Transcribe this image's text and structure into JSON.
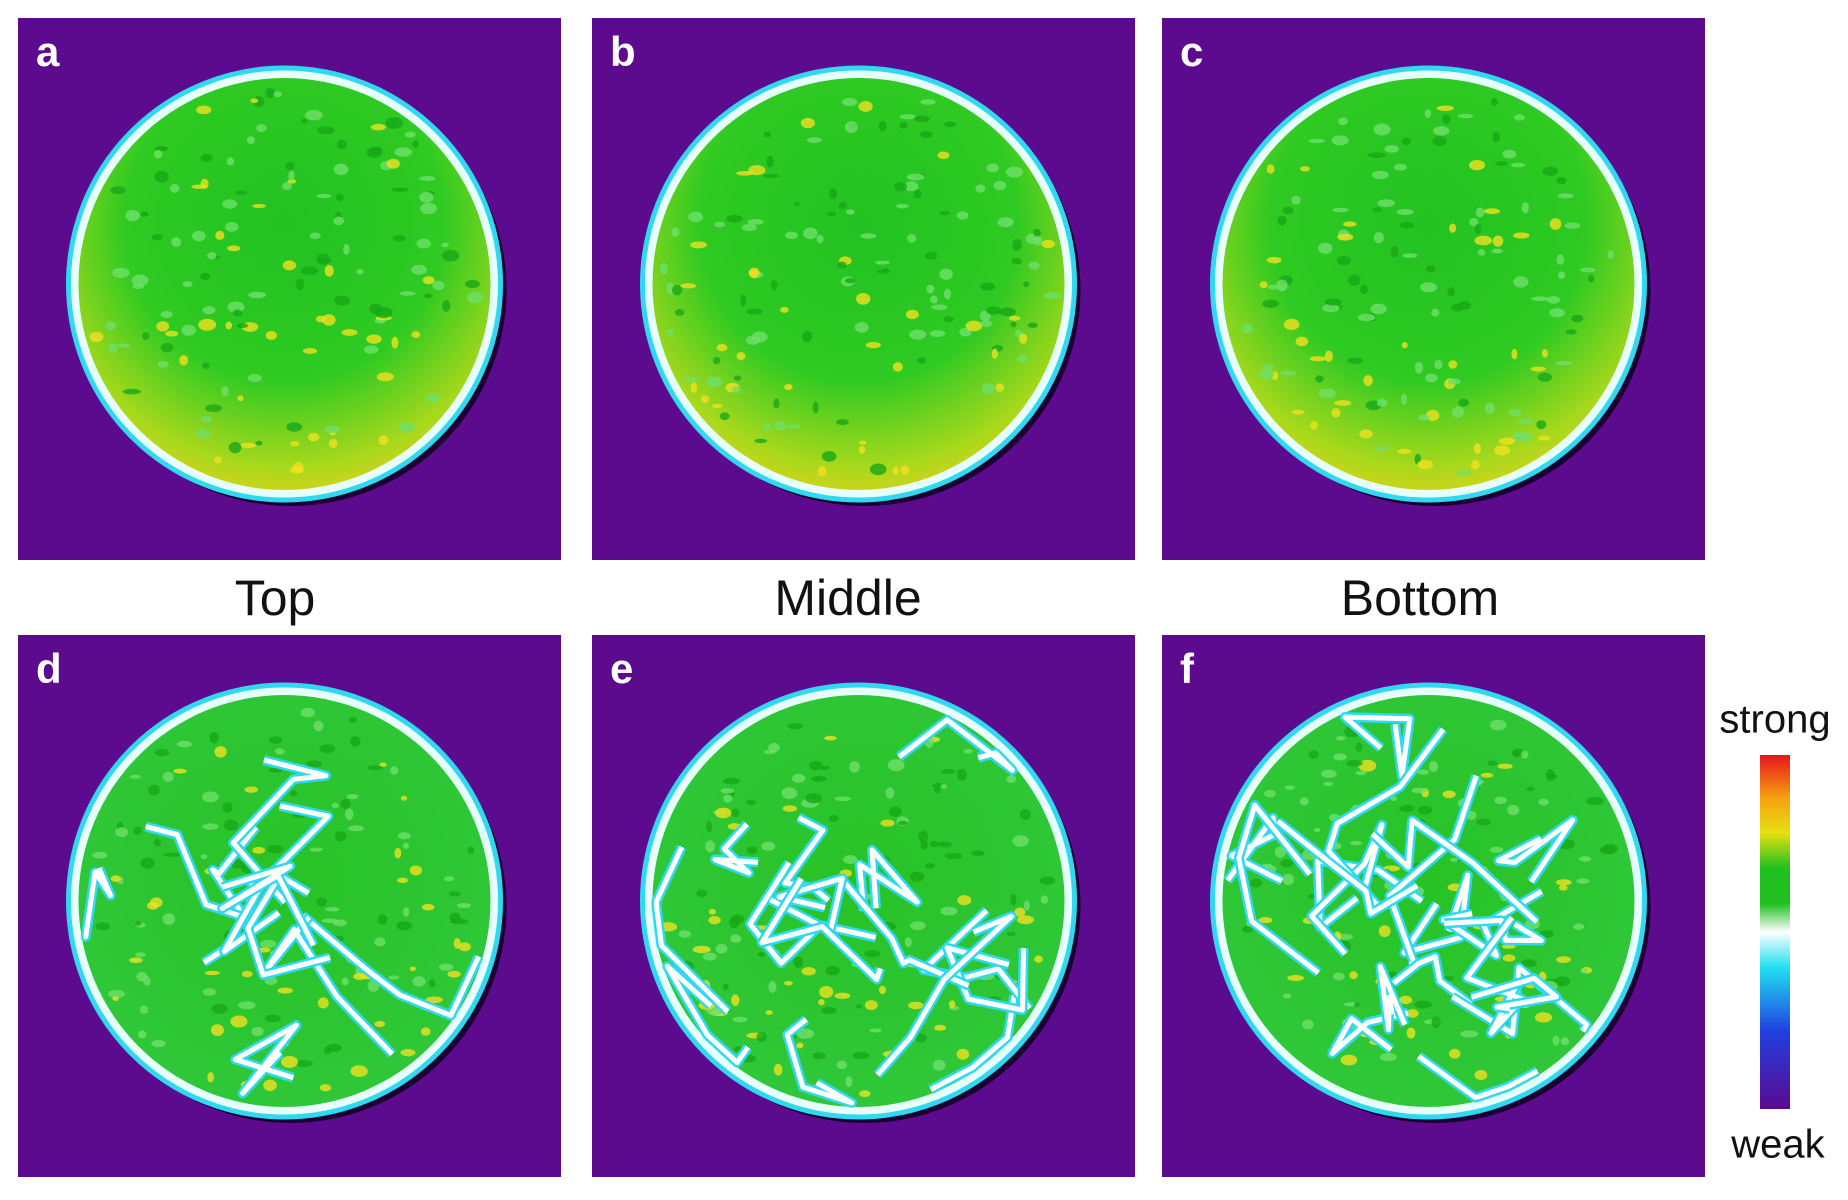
{
  "panels": [
    {
      "label": "a"
    },
    {
      "label": "b"
    },
    {
      "label": "c"
    },
    {
      "label": "d"
    },
    {
      "label": "e"
    },
    {
      "label": "f"
    }
  ],
  "column_labels": [
    "Top",
    "Middle",
    "Bottom"
  ],
  "colorbar": {
    "max_label": "strong",
    "min_label": "weak"
  }
}
